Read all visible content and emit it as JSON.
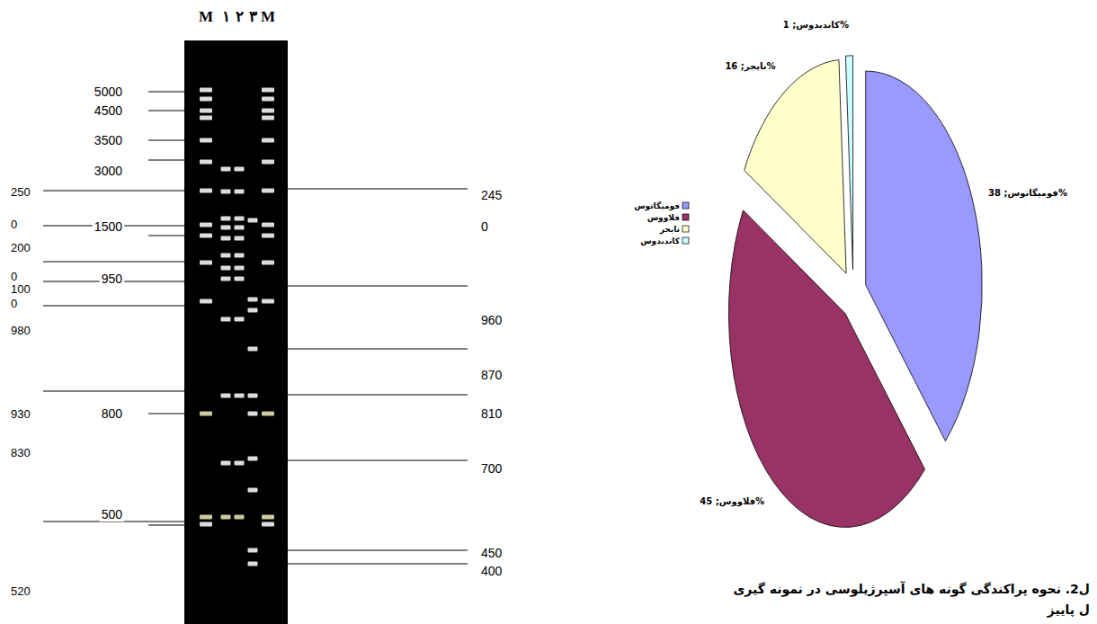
{
  "chart_data": {
    "type": "pie",
    "categories": [
      "فومیگاتوس",
      "فلاووس",
      "نایجر",
      "کاندیدوس"
    ],
    "values": [
      38,
      45,
      16,
      1
    ],
    "value_labels": [
      "فومیگاتوس; 38%",
      "فلاووس; 45%",
      "نایجر; 16%",
      "کاندیدوس; 1%"
    ],
    "colors": [
      "#9999ff",
      "#993366",
      "#ffffcc",
      "#ccffff"
    ],
    "data_labels": true,
    "legend": "left"
  },
  "gel": {
    "lanes": [
      "M",
      "۱",
      "۲",
      "۳",
      "M"
    ],
    "size_labels_left": [
      "5000",
      "4500",
      "3500",
      "3000",
      "1500",
      "950",
      "800",
      "500"
    ],
    "outer_labels_left": [
      "250",
      "0",
      "200",
      "0",
      "100",
      "0",
      "980",
      "930",
      "830",
      "520"
    ],
    "size_labels_right": [
      "245",
      "0",
      "960",
      "870",
      "810",
      "700",
      "450",
      "400"
    ]
  },
  "caption": [
    "ل2. نحوه پراکندگی گونه های آسپرژیلوسی در نمونه گیری",
    "ل پاییز"
  ]
}
